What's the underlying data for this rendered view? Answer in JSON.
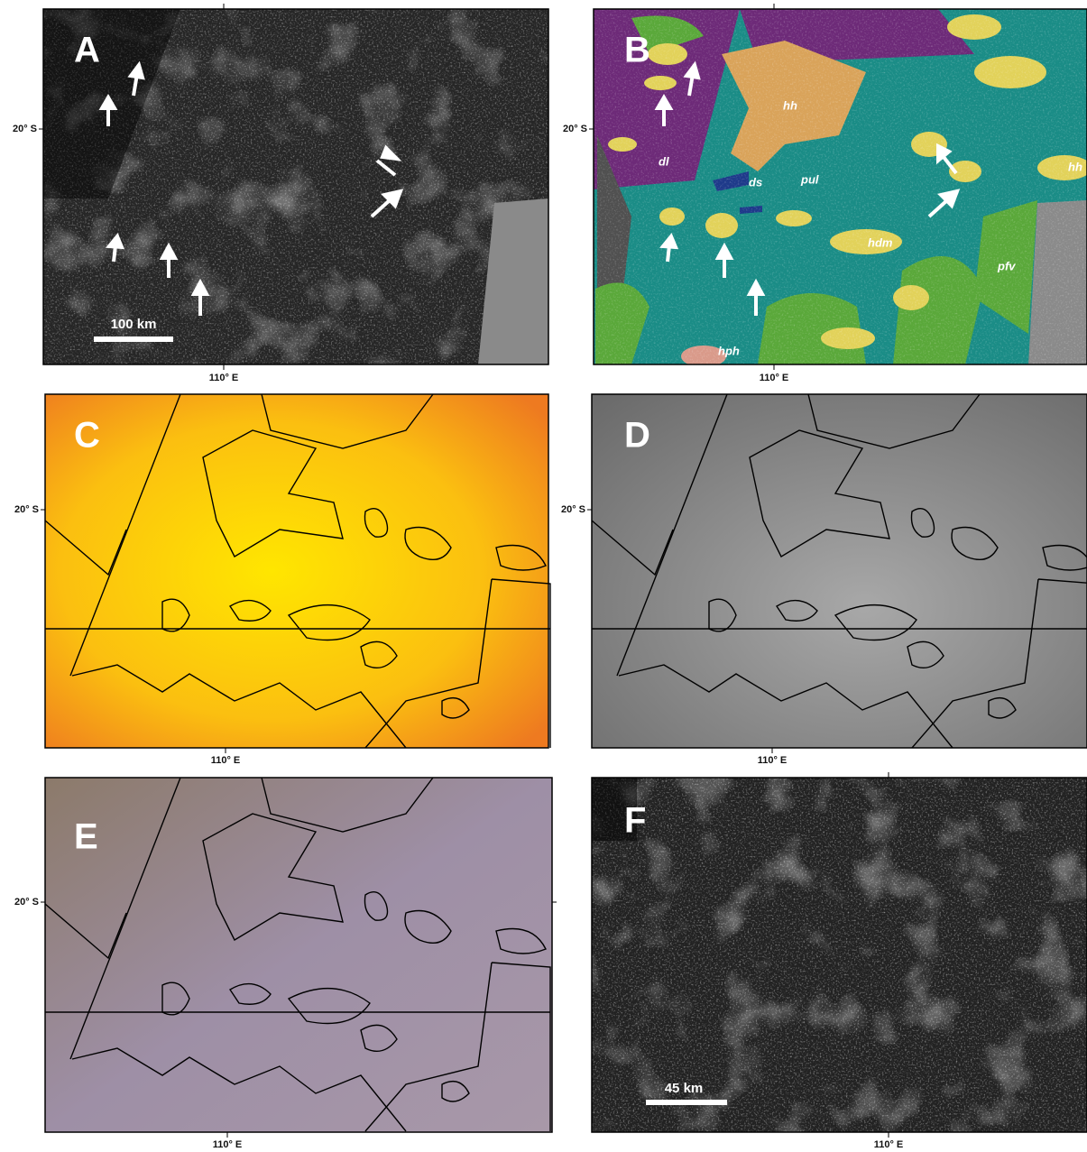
{
  "panels": [
    {
      "letter": "A",
      "lat_label": "20° S",
      "lon_label": "110° E",
      "scale_bar": "100 km"
    },
    {
      "letter": "B",
      "lat_label": "20° S",
      "lon_label": "110° E",
      "units": [
        "hh",
        "dl",
        "ds",
        "pul",
        "hdm",
        "pfv",
        "hph",
        "hh"
      ]
    },
    {
      "letter": "C",
      "lat_label": "20° S",
      "lon_label": "110° E"
    },
    {
      "letter": "D",
      "lat_label": "20° S",
      "lon_label": "110° E"
    },
    {
      "letter": "E",
      "lat_label": "20° S",
      "lon_label": "110° E"
    },
    {
      "letter": "F",
      "lon_label": "110° E",
      "scale_bar": "45 km"
    }
  ]
}
